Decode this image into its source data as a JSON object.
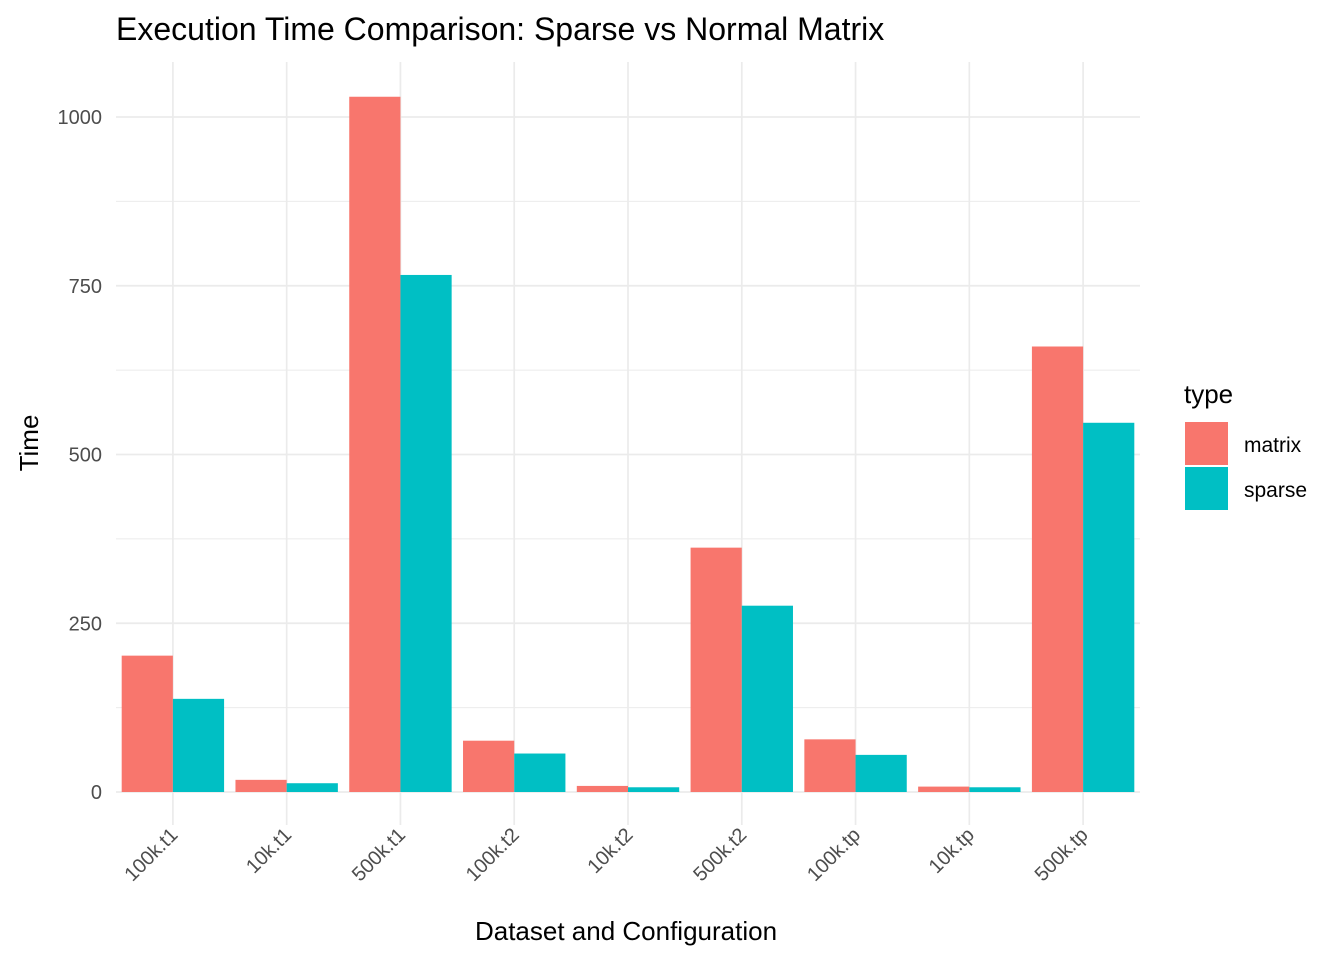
{
  "chart_data": {
    "type": "bar",
    "title": "Execution Time Comparison: Sparse vs Normal Matrix",
    "xlabel": "Dataset and Configuration",
    "ylabel": "Time",
    "categories": [
      "100k.t1",
      "10k.t1",
      "500k.t1",
      "100k.t2",
      "10k.t2",
      "500k.t2",
      "100k.tp",
      "10k.tp",
      "500k.tp"
    ],
    "series": [
      {
        "name": "matrix",
        "color": "#F8766D",
        "values": [
          202,
          18,
          1030,
          76,
          9,
          362,
          78,
          8,
          660
        ]
      },
      {
        "name": "sparse",
        "color": "#00BFC4",
        "values": [
          138,
          13,
          766,
          57,
          7,
          276,
          55,
          7,
          547
        ]
      }
    ],
    "ylim": [
      -25,
      1080
    ],
    "yticks": [
      0,
      250,
      500,
      750,
      1000
    ],
    "yticks_minor": [
      125,
      375,
      625,
      875
    ],
    "x_tick_rotation_deg": 45,
    "grid": true,
    "legend": {
      "title": "type",
      "position": "right"
    }
  }
}
